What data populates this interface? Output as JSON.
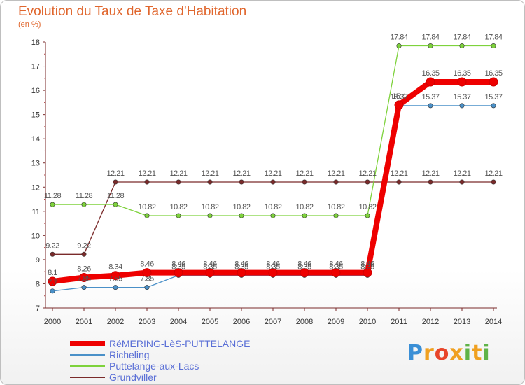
{
  "chart_data": {
    "type": "line",
    "title": "Evolution du Taux de Taxe d'Habitation",
    "ylabel": "(en %)",
    "xlabel": "",
    "x": [
      "2000",
      "2001",
      "2002",
      "2003",
      "2004",
      "2005",
      "2006",
      "2007",
      "2008",
      "2009",
      "2010",
      "2011",
      "2012",
      "2013",
      "2014"
    ],
    "ylim": [
      7,
      18
    ],
    "yticks": [
      "7",
      "8",
      "9",
      "10",
      "11",
      "12",
      "13",
      "14",
      "15",
      "16",
      "17",
      "18"
    ],
    "grid": false,
    "legend_position": "bottom-left",
    "series": [
      {
        "name": "RéMERING-LèS-PUTTELANGE",
        "color": "#ee0000",
        "values": [
          8.1,
          8.26,
          8.34,
          8.46,
          8.46,
          8.46,
          8.46,
          8.46,
          8.46,
          8.46,
          8.46,
          15.4,
          16.35,
          16.35,
          16.35
        ],
        "labels": [
          "8.1",
          "8.26",
          "8.34",
          "8.46",
          "8.46",
          "8.46",
          "8.46",
          "8.46",
          "8.46",
          "8.46",
          "8.46",
          "15.4",
          "16.35",
          "16.35",
          "16.35"
        ]
      },
      {
        "name": "Richeling",
        "color": "#4a90c8",
        "values": [
          7.7,
          7.85,
          7.85,
          7.85,
          8.35,
          8.35,
          8.35,
          8.35,
          8.35,
          8.35,
          8.35,
          15.37,
          15.37,
          15.37,
          15.37
        ],
        "labels": [
          "7.7",
          "7.85",
          "7.85",
          "7.85",
          "8.35",
          "8.35",
          "8.35",
          "8.35",
          "8.35",
          "8.35",
          "8.35",
          "15.37",
          "15.37",
          "15.37",
          "15.37"
        ]
      },
      {
        "name": "Puttelange-aux-Lacs",
        "color": "#7ed23c",
        "values": [
          11.28,
          11.28,
          11.28,
          10.82,
          10.82,
          10.82,
          10.82,
          10.82,
          10.82,
          10.82,
          10.82,
          17.84,
          17.84,
          17.84,
          17.84
        ],
        "labels": [
          "11.28",
          "11.28",
          "11.28",
          "10.82",
          "10.82",
          "10.82",
          "10.82",
          "10.82",
          "10.82",
          "10.82",
          "10.82",
          "17.84",
          "17.84",
          "17.84",
          "17.84"
        ]
      },
      {
        "name": "Grundviller",
        "color": "#7a2a2a",
        "values": [
          9.22,
          9.22,
          12.21,
          12.21,
          12.21,
          12.21,
          12.21,
          12.21,
          12.21,
          12.21,
          12.21,
          12.21,
          12.21,
          12.21,
          12.21
        ],
        "labels": [
          "9.22",
          "9.22",
          "12.21",
          "12.21",
          "12.21",
          "12.21",
          "12.21",
          "12.21",
          "12.21",
          "12.21",
          "12.21",
          "12.21",
          "12.21",
          "12.21",
          "12.21"
        ]
      }
    ]
  },
  "logo": {
    "text": "Proxiti"
  }
}
